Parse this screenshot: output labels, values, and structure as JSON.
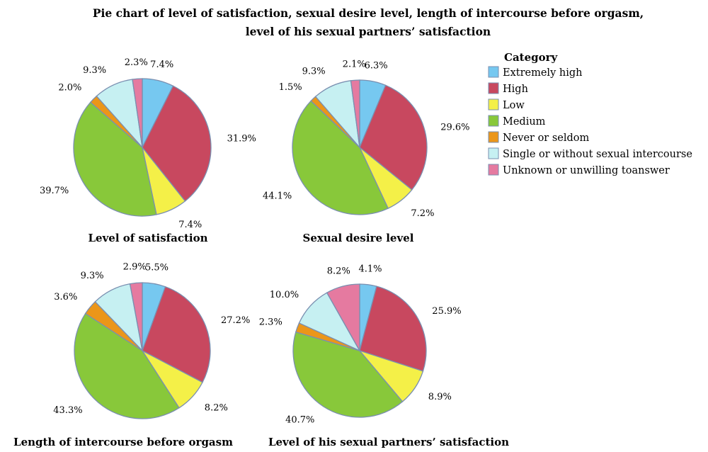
{
  "title": {
    "line1": "Pie chart of level of satisfaction, sexual desire level, length of intercourse before orgasm,",
    "line2": "level of his sexual partners’ satisfaction"
  },
  "legend": {
    "title": "Category"
  },
  "chart_data": {
    "type": "pie",
    "legend_placement": "right",
    "categories": [
      "Extremely high",
      "High",
      "Low",
      "Medium",
      "Never or seldom",
      "Single or without sexual intercourse",
      "Unknown or unwilling toanswer"
    ],
    "colors": [
      "#76c8f0",
      "#c8485f",
      "#f4f048",
      "#88c83a",
      "#eb9619",
      "#c6f0f2",
      "#e57aa0"
    ],
    "pies": [
      {
        "title": "Level of satisfaction",
        "values": [
          7.4,
          31.9,
          7.4,
          39.7,
          2.0,
          9.3,
          2.3
        ],
        "labels": [
          "7.4%",
          "31.9%",
          "7.4%",
          "39.7%",
          "2.0%",
          "9.3%",
          "2.3%"
        ]
      },
      {
        "title": "Sexual desire level",
        "values": [
          6.3,
          29.6,
          7.2,
          44.1,
          1.5,
          9.3,
          2.1
        ],
        "labels": [
          "6.3%",
          "29.6%",
          "7.2%",
          "44.1%",
          "1.5%",
          "9.3%",
          "2.1%"
        ]
      },
      {
        "title": "Length of intercourse before orgasm",
        "values": [
          5.5,
          27.2,
          8.2,
          43.3,
          3.6,
          9.3,
          2.9
        ],
        "labels": [
          "5.5%",
          "27.2%",
          "8.2%",
          "43.3%",
          "3.6%",
          "9.3%",
          "2.9%"
        ]
      },
      {
        "title": "Level of his sexual partners’ satisfaction",
        "values": [
          4.1,
          25.9,
          8.9,
          40.7,
          2.3,
          10.0,
          8.2
        ],
        "labels": [
          "4.1%",
          "25.9%",
          "8.9%",
          "40.7%",
          "2.3%",
          "10.0%",
          "8.2%"
        ]
      }
    ]
  }
}
